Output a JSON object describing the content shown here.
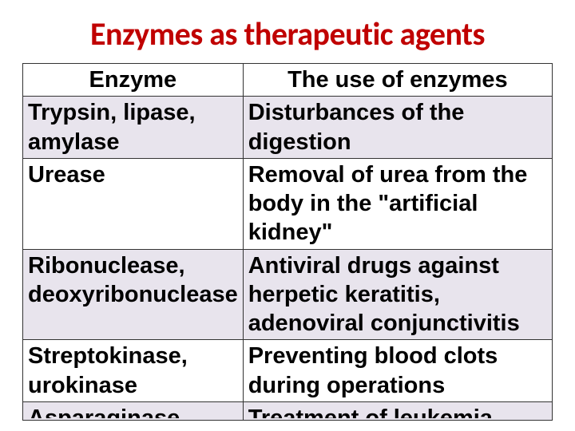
{
  "title": "Enzymes as therapeutic agents",
  "title_color": "#c00000",
  "title_fontsize": 40,
  "body_fontsize": 29,
  "table": {
    "columns": [
      {
        "label": "Enzyme",
        "width_pct": 36
      },
      {
        "label": "The use of enzymes",
        "width_pct": 64
      }
    ],
    "rows": [
      {
        "enzyme": "Trypsin, lipase, amylase",
        "use": "Disturbances of the digestion",
        "bg": "#e8e4ed"
      },
      {
        "enzyme": "Urease",
        "use": "Removal of urea from the body in the \"artificial kidney\"",
        "bg": "#ffffff"
      },
      {
        "enzyme": "Ribonuclease, deoxyribonuclease",
        "use": "Antiviral drugs against herpetic keratitis, adenoviral conjunctivitis",
        "bg": "#e8e4ed"
      },
      {
        "enzyme": "Streptokinase, urokinase",
        "use": "Preventing blood clots during operations",
        "bg": "#ffffff"
      },
      {
        "enzyme": "Asparaginase",
        "use": "Treatment of leukemia",
        "bg": "#e8e4ed",
        "partial": true
      }
    ],
    "border_color": "#333333"
  }
}
